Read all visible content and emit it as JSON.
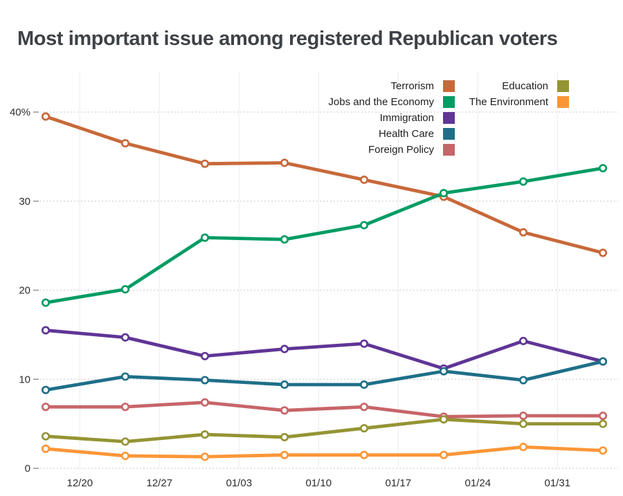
{
  "header": {
    "title": "Most important issue among registered Republican voters"
  },
  "legend": {
    "columns": [
      [
        {
          "label": "Terrorism",
          "slug": "terrorism",
          "color": "#c8693a"
        },
        {
          "label": "Jobs and the Economy",
          "slug": "jobs-economy",
          "color": "#009c63"
        },
        {
          "label": "Immigration",
          "slug": "immigration",
          "color": "#5f3596"
        },
        {
          "label": "Health Care",
          "slug": "health-care",
          "color": "#1f6f88"
        },
        {
          "label": "Foreign Policy",
          "slug": "foreign-policy",
          "color": "#c76569"
        }
      ],
      [
        {
          "label": "Education",
          "slug": "education",
          "color": "#959434"
        },
        {
          "label": "The Environment",
          "slug": "environment",
          "color": "#fb9637"
        }
      ]
    ]
  },
  "chart_data": {
    "type": "line",
    "title": "Most important issue among registered Republican voters",
    "xlabel": "",
    "ylabel": "",
    "ylim": [
      0,
      40
    ],
    "y_ticks": [
      {
        "value": 40,
        "label": "40%"
      },
      {
        "value": 30,
        "label": "30"
      },
      {
        "value": 20,
        "label": "20"
      },
      {
        "value": 10,
        "label": "10"
      },
      {
        "value": 0,
        "label": "0"
      }
    ],
    "x_tick_labels": [
      "12/20",
      "12/27",
      "01/03",
      "01/10",
      "01/17",
      "01/24",
      "01/31"
    ],
    "x_tick_days": [
      3,
      10,
      17,
      24,
      31,
      38,
      45
    ],
    "x_days": [
      0,
      7,
      14,
      21,
      28,
      35,
      42,
      49
    ],
    "grid": {
      "horizontal": "dotted",
      "vertical": "solid"
    },
    "legend_position": "top-right-two-columns",
    "marker": "open-circle",
    "series": [
      {
        "name": "Terrorism",
        "slug": "terrorism",
        "color": "#c8693a",
        "values": [
          39.5,
          36.5,
          34.2,
          34.3,
          32.4,
          30.5,
          26.5,
          24.2
        ]
      },
      {
        "name": "Jobs and the Economy",
        "slug": "jobs-economy",
        "color": "#009c63",
        "values": [
          18.6,
          20.1,
          25.9,
          25.7,
          27.3,
          30.9,
          32.2,
          33.7
        ]
      },
      {
        "name": "Immigration",
        "slug": "immigration",
        "color": "#5f3596",
        "values": [
          15.5,
          14.7,
          12.6,
          13.4,
          14.0,
          11.2,
          14.3,
          12.0
        ]
      },
      {
        "name": "Health Care",
        "slug": "health-care",
        "color": "#1f6f88",
        "values": [
          8.8,
          10.3,
          9.9,
          9.4,
          9.4,
          10.9,
          9.9,
          12.0
        ]
      },
      {
        "name": "Foreign Policy",
        "slug": "foreign-policy",
        "color": "#c76569",
        "values": [
          6.9,
          6.9,
          7.4,
          6.5,
          6.9,
          5.8,
          5.9,
          5.9
        ]
      },
      {
        "name": "Education",
        "slug": "education",
        "color": "#959434",
        "values": [
          3.6,
          3.0,
          3.8,
          3.5,
          4.5,
          5.5,
          5.0,
          5.0
        ]
      },
      {
        "name": "The Environment",
        "slug": "environment",
        "color": "#fb9637",
        "values": [
          2.2,
          1.4,
          1.3,
          1.5,
          1.5,
          1.5,
          2.4,
          2.0
        ]
      }
    ],
    "styles": {
      "grid_v_color": "#ebebeb",
      "grid_h_color": "#d2d2d2",
      "tick_color": "#8c8c8c",
      "axis_label_color": "#2e2e2e",
      "title_color": "#3e4247",
      "marker_fill": "#ffffff"
    }
  }
}
